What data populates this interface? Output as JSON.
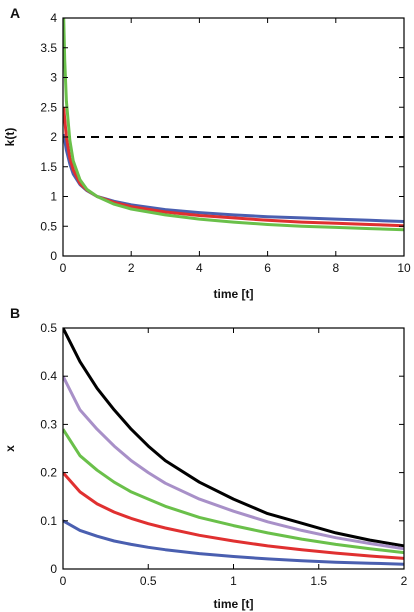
{
  "chart_data": [
    {
      "panel_label": "A",
      "type": "line",
      "xlabel": "time [t]",
      "ylabel": "k(t)",
      "xlim": [
        0,
        10
      ],
      "ylim": [
        0,
        4
      ],
      "xticks": [
        0,
        2,
        4,
        6,
        8,
        10
      ],
      "yticks": [
        0,
        0.5,
        1,
        1.5,
        2,
        2.5,
        3,
        3.5,
        4
      ],
      "xtick_labels": [
        "0",
        "2",
        "4",
        "6",
        "8",
        "10"
      ],
      "ytick_labels": [
        "0",
        "0.5",
        "1",
        "1.5",
        "2",
        "2.5",
        "3",
        "3.5",
        "4"
      ],
      "reference_line": {
        "y": 2,
        "style": "dashed",
        "color": "#000000"
      },
      "series": [
        {
          "color": "#4a5fb0",
          "x": [
            0.02,
            0.05,
            0.1,
            0.2,
            0.3,
            0.5,
            0.7,
            1,
            1.5,
            2,
            3,
            4,
            5,
            6,
            7,
            8,
            9,
            10
          ],
          "y": [
            2.05,
            1.95,
            1.78,
            1.55,
            1.38,
            1.2,
            1.1,
            1.0,
            0.92,
            0.86,
            0.78,
            0.73,
            0.69,
            0.66,
            0.64,
            0.62,
            0.6,
            0.58
          ]
        },
        {
          "color": "#e03030",
          "x": [
            0.02,
            0.05,
            0.1,
            0.2,
            0.3,
            0.5,
            0.7,
            1,
            1.5,
            2,
            3,
            4,
            5,
            6,
            7,
            8,
            9,
            10
          ],
          "y": [
            2.5,
            2.3,
            2.0,
            1.65,
            1.45,
            1.22,
            1.11,
            1.0,
            0.9,
            0.83,
            0.74,
            0.68,
            0.64,
            0.6,
            0.57,
            0.55,
            0.53,
            0.51
          ]
        },
        {
          "color": "#6ac04a",
          "x": [
            0.02,
            0.05,
            0.1,
            0.2,
            0.3,
            0.5,
            0.7,
            1,
            1.5,
            2,
            3,
            4,
            5,
            6,
            7,
            8,
            9,
            10
          ],
          "y": [
            4.0,
            3.3,
            2.6,
            1.95,
            1.6,
            1.28,
            1.12,
            1.0,
            0.87,
            0.79,
            0.69,
            0.62,
            0.57,
            0.53,
            0.5,
            0.48,
            0.46,
            0.44
          ]
        }
      ]
    },
    {
      "panel_label": "B",
      "type": "line",
      "xlabel": "time [t]",
      "ylabel": "x",
      "xlim": [
        0,
        2
      ],
      "ylim": [
        0,
        0.5
      ],
      "xticks": [
        0,
        0.5,
        1,
        1.5,
        2
      ],
      "yticks": [
        0,
        0.1,
        0.2,
        0.3,
        0.4,
        0.5
      ],
      "xtick_labels": [
        "0",
        "0.5",
        "1",
        "1.5",
        "2"
      ],
      "ytick_labels": [
        "0",
        "0.1",
        "0.2",
        "0.3",
        "0.4",
        "0.5"
      ],
      "series": [
        {
          "color": "#000000",
          "x": [
            0,
            0.1,
            0.2,
            0.3,
            0.4,
            0.5,
            0.6,
            0.8,
            1.0,
            1.2,
            1.4,
            1.6,
            1.8,
            2.0
          ],
          "y": [
            0.5,
            0.43,
            0.375,
            0.33,
            0.29,
            0.255,
            0.225,
            0.18,
            0.145,
            0.115,
            0.095,
            0.075,
            0.06,
            0.048
          ]
        },
        {
          "color": "#a890c8",
          "x": [
            0,
            0.1,
            0.2,
            0.3,
            0.4,
            0.5,
            0.6,
            0.8,
            1.0,
            1.2,
            1.4,
            1.6,
            1.8,
            2.0
          ],
          "y": [
            0.4,
            0.33,
            0.29,
            0.255,
            0.225,
            0.2,
            0.178,
            0.145,
            0.12,
            0.098,
            0.08,
            0.065,
            0.053,
            0.042
          ]
        },
        {
          "color": "#6ac04a",
          "x": [
            0,
            0.1,
            0.2,
            0.3,
            0.4,
            0.5,
            0.6,
            0.8,
            1.0,
            1.2,
            1.4,
            1.6,
            1.8,
            2.0
          ],
          "y": [
            0.29,
            0.235,
            0.205,
            0.18,
            0.16,
            0.145,
            0.13,
            0.107,
            0.09,
            0.075,
            0.062,
            0.051,
            0.042,
            0.034
          ]
        },
        {
          "color": "#e03030",
          "x": [
            0,
            0.1,
            0.2,
            0.3,
            0.4,
            0.5,
            0.6,
            0.8,
            1.0,
            1.2,
            1.4,
            1.6,
            1.8,
            2.0
          ],
          "y": [
            0.2,
            0.16,
            0.135,
            0.118,
            0.105,
            0.094,
            0.085,
            0.07,
            0.058,
            0.048,
            0.04,
            0.033,
            0.027,
            0.022
          ]
        },
        {
          "color": "#4a5fb0",
          "x": [
            0,
            0.1,
            0.2,
            0.3,
            0.4,
            0.5,
            0.6,
            0.8,
            1.0,
            1.2,
            1.4,
            1.6,
            1.8,
            2.0
          ],
          "y": [
            0.1,
            0.08,
            0.068,
            0.058,
            0.051,
            0.045,
            0.04,
            0.032,
            0.026,
            0.021,
            0.017,
            0.014,
            0.012,
            0.01
          ]
        }
      ]
    }
  ]
}
